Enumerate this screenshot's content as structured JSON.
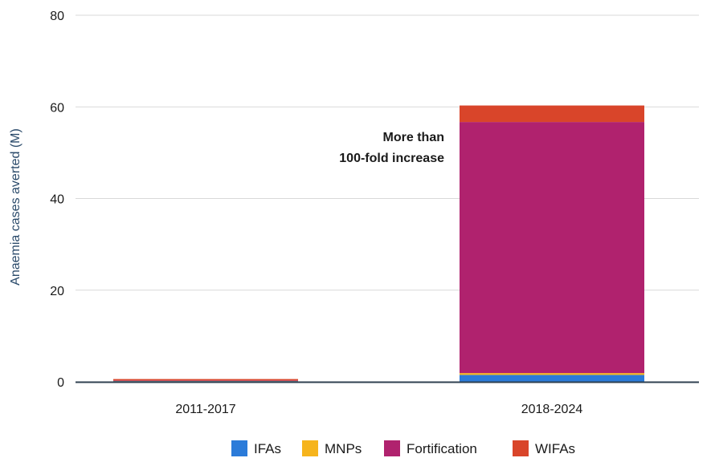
{
  "chart_data": {
    "type": "bar",
    "stacked": true,
    "categories": [
      "2011-2017",
      "2018-2024"
    ],
    "series": [
      {
        "name": "IFAs",
        "color": "#2b7bd9",
        "values": [
          0.2,
          1.5
        ]
      },
      {
        "name": "MNPs",
        "color": "#f6b41c",
        "values": [
          0.05,
          0.4
        ]
      },
      {
        "name": "Fortification",
        "color": "#b0226e",
        "values": [
          0.05,
          54.8
        ]
      },
      {
        "name": "WIFAs",
        "color": "#d9452a",
        "values": [
          0.3,
          3.6
        ]
      }
    ],
    "ylabel": "Anaemia cases averted (M)",
    "ylim": [
      0,
      80
    ],
    "yticks": [
      0,
      20,
      40,
      60,
      80
    ],
    "grid": true,
    "legend_position": "bottom",
    "annotation": {
      "lines": [
        "More than",
        "100-fold increase"
      ]
    }
  }
}
